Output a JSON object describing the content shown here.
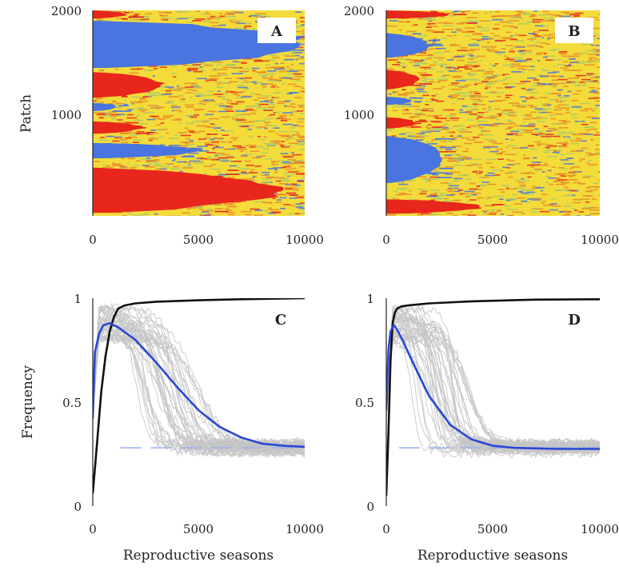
{
  "colors": {
    "red": "#e8261b",
    "blue": "#4a74e0",
    "yellow": "#f3dc3a",
    "orange": "#e98a2a",
    "green": "#a9c96a",
    "grey": "#c4c4c4",
    "black": "#111111",
    "mean": "#2a47d4",
    "dashed": "#9db4ee"
  },
  "chart_data": [
    {
      "id": "A",
      "type": "heatmap",
      "panel_label": "A",
      "xlabel": "",
      "ylabel": "Patch",
      "xlim": [
        0,
        10000
      ],
      "ylim": [
        0,
        2000
      ],
      "xticks": [
        "0",
        "5000",
        "10000"
      ],
      "yticks": [
        "2000",
        "1000"
      ],
      "bands": [
        {
          "color": "red",
          "y": [
            1920,
            2000
          ],
          "x_end": 1600
        },
        {
          "color": "blue",
          "y": [
            1440,
            1900
          ],
          "x_end": 10000
        },
        {
          "color": "red",
          "y": [
            1150,
            1400
          ],
          "x_end": 3300
        },
        {
          "color": "blue",
          "y": [
            1020,
            1100
          ],
          "x_end": 1100
        },
        {
          "color": "red",
          "y": [
            800,
            920
          ],
          "x_end": 2300
        },
        {
          "color": "blue",
          "y": [
            560,
            710
          ],
          "x_end": 5000
        },
        {
          "color": "red",
          "y": [
            30,
            470
          ],
          "x_end": 8800
        }
      ]
    },
    {
      "id": "B",
      "type": "heatmap",
      "panel_label": "B",
      "xlabel": "",
      "ylabel": "",
      "xlim": [
        0,
        10000
      ],
      "ylim": [
        0,
        2000
      ],
      "xticks": [
        "0",
        "5000",
        "10000"
      ],
      "yticks": [
        "2000",
        "1000"
      ],
      "bands": [
        {
          "color": "red",
          "y": [
            1920,
            2000
          ],
          "x_end": 3000
        },
        {
          "color": "blue",
          "y": [
            1540,
            1780
          ],
          "x_end": 2000
        },
        {
          "color": "red",
          "y": [
            1230,
            1420
          ],
          "x_end": 1500
        },
        {
          "color": "blue",
          "y": [
            1080,
            1160
          ],
          "x_end": 1200
        },
        {
          "color": "red",
          "y": [
            850,
            960
          ],
          "x_end": 1400
        },
        {
          "color": "blue",
          "y": [
            320,
            780
          ],
          "x_end": 2700
        },
        {
          "color": "red",
          "y": [
            20,
            160
          ],
          "x_end": 4500
        }
      ]
    },
    {
      "id": "C",
      "type": "line",
      "panel_label": "C",
      "xlabel": "Reproductive seasons",
      "ylabel": "Frequency",
      "xlim": [
        0,
        10000
      ],
      "ylim": [
        0,
        1
      ],
      "xticks": [
        "0",
        "5000",
        "10000"
      ],
      "yticks": [
        "1",
        "0.5",
        "0"
      ],
      "series": [
        {
          "color": "black",
          "x": [
            0,
            200,
            400,
            600,
            800,
            1000,
            1200,
            1500,
            2000,
            3000,
            5000,
            7000,
            10000
          ],
          "y": [
            0.06,
            0.3,
            0.55,
            0.72,
            0.84,
            0.91,
            0.95,
            0.965,
            0.975,
            0.983,
            0.99,
            0.995,
            1.0
          ]
        },
        {
          "color": "mean",
          "x": [
            0,
            100,
            300,
            500,
            800,
            1200,
            2000,
            3000,
            4000,
            5000,
            6000,
            7000,
            8000,
            9000,
            10000
          ],
          "y": [
            0.42,
            0.74,
            0.83,
            0.87,
            0.88,
            0.86,
            0.8,
            0.69,
            0.57,
            0.46,
            0.38,
            0.33,
            0.3,
            0.29,
            0.285
          ]
        }
      ],
      "reference_line": {
        "y": 0.28,
        "x": [
          1300,
          10000
        ]
      },
      "replicates": {
        "count": 40,
        "peak": [
          0.8,
          0.96
        ],
        "decline_start": [
          1000,
          3500
        ],
        "decline_half": [
          800,
          2200
        ],
        "floor": [
          0.25,
          0.32
        ]
      }
    },
    {
      "id": "D",
      "type": "line",
      "panel_label": "D",
      "xlabel": "Reproductive seasons",
      "ylabel": "",
      "xlim": [
        0,
        10000
      ],
      "ylim": [
        0,
        1
      ],
      "xticks": [
        "0",
        "5000",
        "10000"
      ],
      "yticks": [
        "1",
        "0.5",
        "0"
      ],
      "series": [
        {
          "color": "black",
          "x": [
            0,
            100,
            200,
            300,
            400,
            500,
            700,
            1000,
            2000,
            4000,
            7000,
            10000
          ],
          "y": [
            0.05,
            0.35,
            0.7,
            0.88,
            0.93,
            0.95,
            0.96,
            0.965,
            0.975,
            0.985,
            0.993,
            0.995
          ]
        },
        {
          "color": "mean",
          "x": [
            0,
            100,
            200,
            350,
            500,
            800,
            1200,
            2000,
            3000,
            4000,
            5000,
            6000,
            8000,
            10000
          ],
          "y": [
            0.46,
            0.75,
            0.84,
            0.87,
            0.85,
            0.79,
            0.7,
            0.53,
            0.39,
            0.32,
            0.29,
            0.28,
            0.275,
            0.275
          ]
        }
      ],
      "reference_line": {
        "y": 0.28,
        "x": [
          600,
          10000
        ]
      },
      "replicates": {
        "count": 40,
        "peak": [
          0.8,
          0.96
        ],
        "decline_start": [
          300,
          2800
        ],
        "decline_half": [
          500,
          1800
        ],
        "floor": [
          0.25,
          0.31
        ]
      }
    }
  ]
}
